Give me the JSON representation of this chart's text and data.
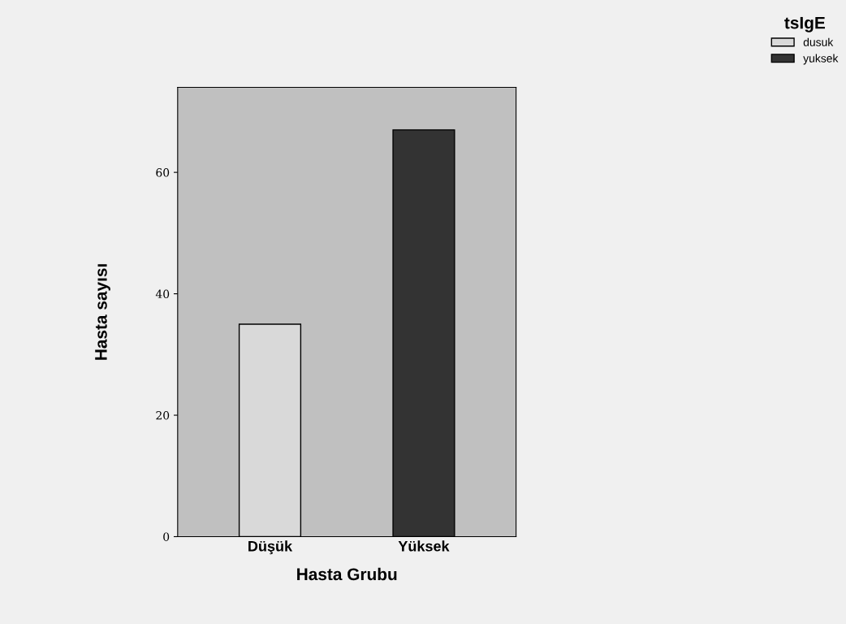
{
  "chart_data": {
    "type": "bar",
    "xlabel": "Hasta Grubu",
    "ylabel": "Hasta sayısı",
    "legend_title": "tsIgE",
    "categories": [
      "Düşük",
      "Yüksek"
    ],
    "series": [
      {
        "name": "dusuk",
        "color": "#d9d9d9",
        "values": [
          35,
          null
        ]
      },
      {
        "name": "yuksek",
        "color": "#333333",
        "values": [
          null,
          67
        ]
      }
    ],
    "ylim": [
      0,
      74
    ],
    "yticks": [
      0,
      20,
      40,
      60
    ],
    "grid": false,
    "legend": "top right"
  }
}
